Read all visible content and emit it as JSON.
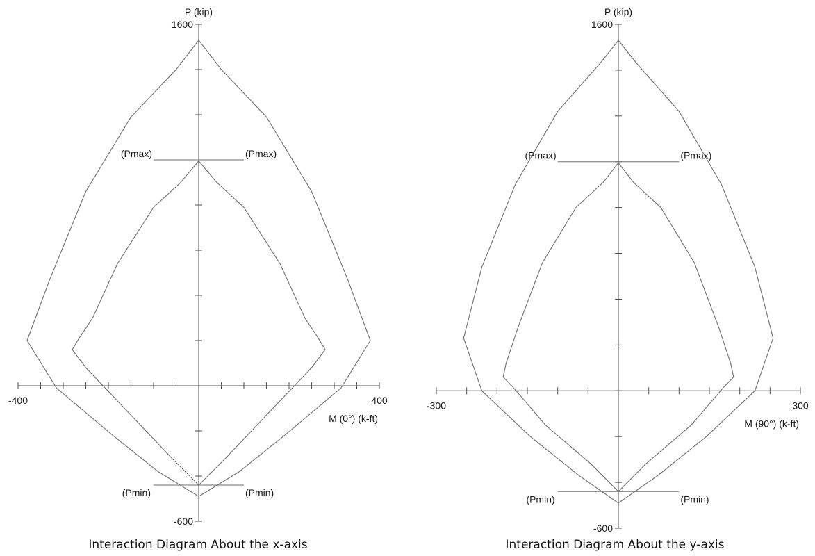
{
  "chart_data": [
    {
      "type": "line",
      "title": "Interaction Diagram About the x-axis",
      "xlabel": "M (0°) (k-ft)",
      "ylabel": "P (kip)",
      "xlim": [
        -400,
        400
      ],
      "ylim": [
        -600,
        1600
      ],
      "x_tick_step": 50,
      "y_tick_step": 200,
      "x_tick_labels": [
        "-400",
        "400"
      ],
      "y_tick_labels": [
        "1600",
        "-600"
      ],
      "annotations": {
        "pmax_left": "(Pmax)",
        "pmax_right": "(Pmax)",
        "pmin_left": "(Pmin)",
        "pmin_right": "(Pmin)"
      },
      "pmax_value": 1000,
      "pmax_line_x": [
        -100,
        100
      ],
      "pmin_value": -440,
      "pmin_line_x": [
        -100,
        100
      ],
      "series": [
        {
          "values": [
            {
              "x": 0,
              "y": 1530
            },
            {
              "x": 50,
              "y": 1400
            },
            {
              "x": 150,
              "y": 1190
            },
            {
              "x": 250,
              "y": 860
            },
            {
              "x": 330,
              "y": 470
            },
            {
              "x": 380,
              "y": 200
            },
            {
              "x": 315,
              "y": -10
            },
            {
              "x": 190,
              "y": -220
            },
            {
              "x": 90,
              "y": -380
            },
            {
              "x": 0,
              "y": -490
            },
            {
              "x": -90,
              "y": -380
            },
            {
              "x": -190,
              "y": -220
            },
            {
              "x": -315,
              "y": -10
            },
            {
              "x": -380,
              "y": 200
            },
            {
              "x": -330,
              "y": 470
            },
            {
              "x": -250,
              "y": 860
            },
            {
              "x": -150,
              "y": 1190
            },
            {
              "x": -50,
              "y": 1400
            },
            {
              "x": 0,
              "y": 1530
            }
          ]
        },
        {
          "values": [
            {
              "x": 0,
              "y": 995
            },
            {
              "x": 40,
              "y": 900
            },
            {
              "x": 100,
              "y": 790
            },
            {
              "x": 180,
              "y": 540
            },
            {
              "x": 235,
              "y": 300
            },
            {
              "x": 265,
              "y": 210
            },
            {
              "x": 280,
              "y": 160
            },
            {
              "x": 250,
              "y": 80
            },
            {
              "x": 150,
              "y": -130
            },
            {
              "x": 60,
              "y": -320
            },
            {
              "x": 0,
              "y": -440
            },
            {
              "x": -60,
              "y": -320
            },
            {
              "x": -150,
              "y": -130
            },
            {
              "x": -250,
              "y": 80
            },
            {
              "x": -280,
              "y": 160
            },
            {
              "x": -265,
              "y": 210
            },
            {
              "x": -235,
              "y": 300
            },
            {
              "x": -180,
              "y": 540
            },
            {
              "x": -100,
              "y": 790
            },
            {
              "x": -40,
              "y": 900
            },
            {
              "x": 0,
              "y": 995
            }
          ]
        }
      ]
    },
    {
      "type": "line",
      "title": "Interaction Diagram About the y-axis",
      "xlabel": "M (90°) (k-ft)",
      "ylabel": "P (kip)",
      "xlim": [
        -300,
        300
      ],
      "ylim": [
        -600,
        1600
      ],
      "x_tick_step": 50,
      "y_tick_step": 200,
      "x_tick_labels": [
        "-300",
        "300"
      ],
      "y_tick_labels": [
        "1600",
        "-600"
      ],
      "annotations": {
        "pmax_left": "(Pmax)",
        "pmax_right": "(Pmax)",
        "pmin_left": "(Pmin)",
        "pmin_right": "(Pmin)"
      },
      "pmax_value": 1000,
      "pmax_line_x": [
        -100,
        100
      ],
      "pmin_value": -440,
      "pmin_line_x": [
        -100,
        100
      ],
      "series": [
        {
          "values": [
            {
              "x": 0,
              "y": 1530
            },
            {
              "x": 30,
              "y": 1430
            },
            {
              "x": 100,
              "y": 1220
            },
            {
              "x": 170,
              "y": 900
            },
            {
              "x": 225,
              "y": 540
            },
            {
              "x": 255,
              "y": 230
            },
            {
              "x": 225,
              "y": 0
            },
            {
              "x": 145,
              "y": -200
            },
            {
              "x": 65,
              "y": -370
            },
            {
              "x": 0,
              "y": -490
            },
            {
              "x": -65,
              "y": -370
            },
            {
              "x": -145,
              "y": -200
            },
            {
              "x": -225,
              "y": 0
            },
            {
              "x": -255,
              "y": 230
            },
            {
              "x": -225,
              "y": 540
            },
            {
              "x": -170,
              "y": 900
            },
            {
              "x": -100,
              "y": 1220
            },
            {
              "x": -30,
              "y": 1430
            },
            {
              "x": 0,
              "y": 1530
            }
          ]
        },
        {
          "values": [
            {
              "x": 0,
              "y": 995
            },
            {
              "x": 25,
              "y": 910
            },
            {
              "x": 70,
              "y": 800
            },
            {
              "x": 125,
              "y": 560
            },
            {
              "x": 165,
              "y": 280
            },
            {
              "x": 185,
              "y": 120
            },
            {
              "x": 190,
              "y": 60
            },
            {
              "x": 175,
              "y": 20
            },
            {
              "x": 120,
              "y": -150
            },
            {
              "x": 45,
              "y": -320
            },
            {
              "x": 0,
              "y": -440
            },
            {
              "x": -45,
              "y": -320
            },
            {
              "x": -120,
              "y": -150
            },
            {
              "x": -175,
              "y": 20
            },
            {
              "x": -190,
              "y": 60
            },
            {
              "x": -185,
              "y": 120
            },
            {
              "x": -165,
              "y": 280
            },
            {
              "x": -125,
              "y": 560
            },
            {
              "x": -70,
              "y": 800
            },
            {
              "x": -25,
              "y": 910
            },
            {
              "x": 0,
              "y": 995
            }
          ]
        }
      ]
    }
  ]
}
